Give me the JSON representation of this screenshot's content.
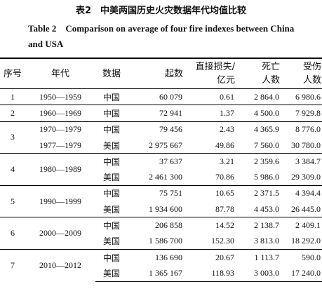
{
  "title_cn": "表2　中美两国历史火灾数据年代均值比较",
  "title_en": "Table 2　Comparison on average of four fire indexes between China and USA",
  "table": {
    "headers": [
      "序号",
      "年代",
      "数据",
      "起数",
      "直接损失/\n亿元",
      "死亡\n人数",
      "受伤\n人数"
    ],
    "groups": [
      {
        "no": "1",
        "period": "1950—1959",
        "rows": [
          {
            "data": "中国",
            "count": "60 079",
            "loss": "0.61",
            "death": "2 864.0",
            "injury": "6 980.6"
          }
        ]
      },
      {
        "no": "2",
        "period": "1960—1969",
        "rows": [
          {
            "data": "中国",
            "count": "72 941",
            "loss": "1.37",
            "death": "4 500.0",
            "injury": "7 929.8"
          }
        ]
      },
      {
        "no": "3",
        "rows": [
          {
            "period": "1970—1979",
            "data": "中国",
            "count": "79 456",
            "loss": "2.43",
            "death": "4 365.9",
            "injury": "8 776.0"
          },
          {
            "period": "1977—1979",
            "data": "美国",
            "count": "2 975 667",
            "loss": "49.86",
            "death": "7 560.0",
            "injury": "30 780.0"
          }
        ]
      },
      {
        "no": "4",
        "period": "1980—1989",
        "rows": [
          {
            "data": "中国",
            "count": "37 637",
            "loss": "3.21",
            "death": "2 359.6",
            "injury": "3 384.7"
          },
          {
            "data": "美国",
            "count": "2 461 300",
            "loss": "70.86",
            "death": "5 986.0",
            "injury": "29 309.0"
          }
        ]
      },
      {
        "no": "5",
        "period": "1990—1999",
        "rows": [
          {
            "data": "中国",
            "count": "75 751",
            "loss": "10.65",
            "death": "2 371.5",
            "injury": "4 394.4"
          },
          {
            "data": "美国",
            "count": "1 934 600",
            "loss": "87.78",
            "death": "4 453.0",
            "injury": "26 445.0"
          }
        ]
      },
      {
        "no": "6",
        "period": "2000—2009",
        "rows": [
          {
            "data": "中国",
            "count": "206 858",
            "loss": "14.52",
            "death": "2 138.7",
            "injury": "2 409.1"
          },
          {
            "data": "美国",
            "count": "1 586 700",
            "loss": "152.30",
            "death": "3 813.0",
            "injury": "18 292.0"
          }
        ]
      },
      {
        "no": "7",
        "period": "2010—2012",
        "rows": [
          {
            "data": "中国",
            "count": "136 690",
            "loss": "20.67",
            "death": "1 113.7",
            "injury": "590.0"
          },
          {
            "data": "美国",
            "count": "1 365 167",
            "loss": "118.93",
            "death": "3 003.0",
            "injury": "17 240.0"
          }
        ]
      }
    ]
  }
}
